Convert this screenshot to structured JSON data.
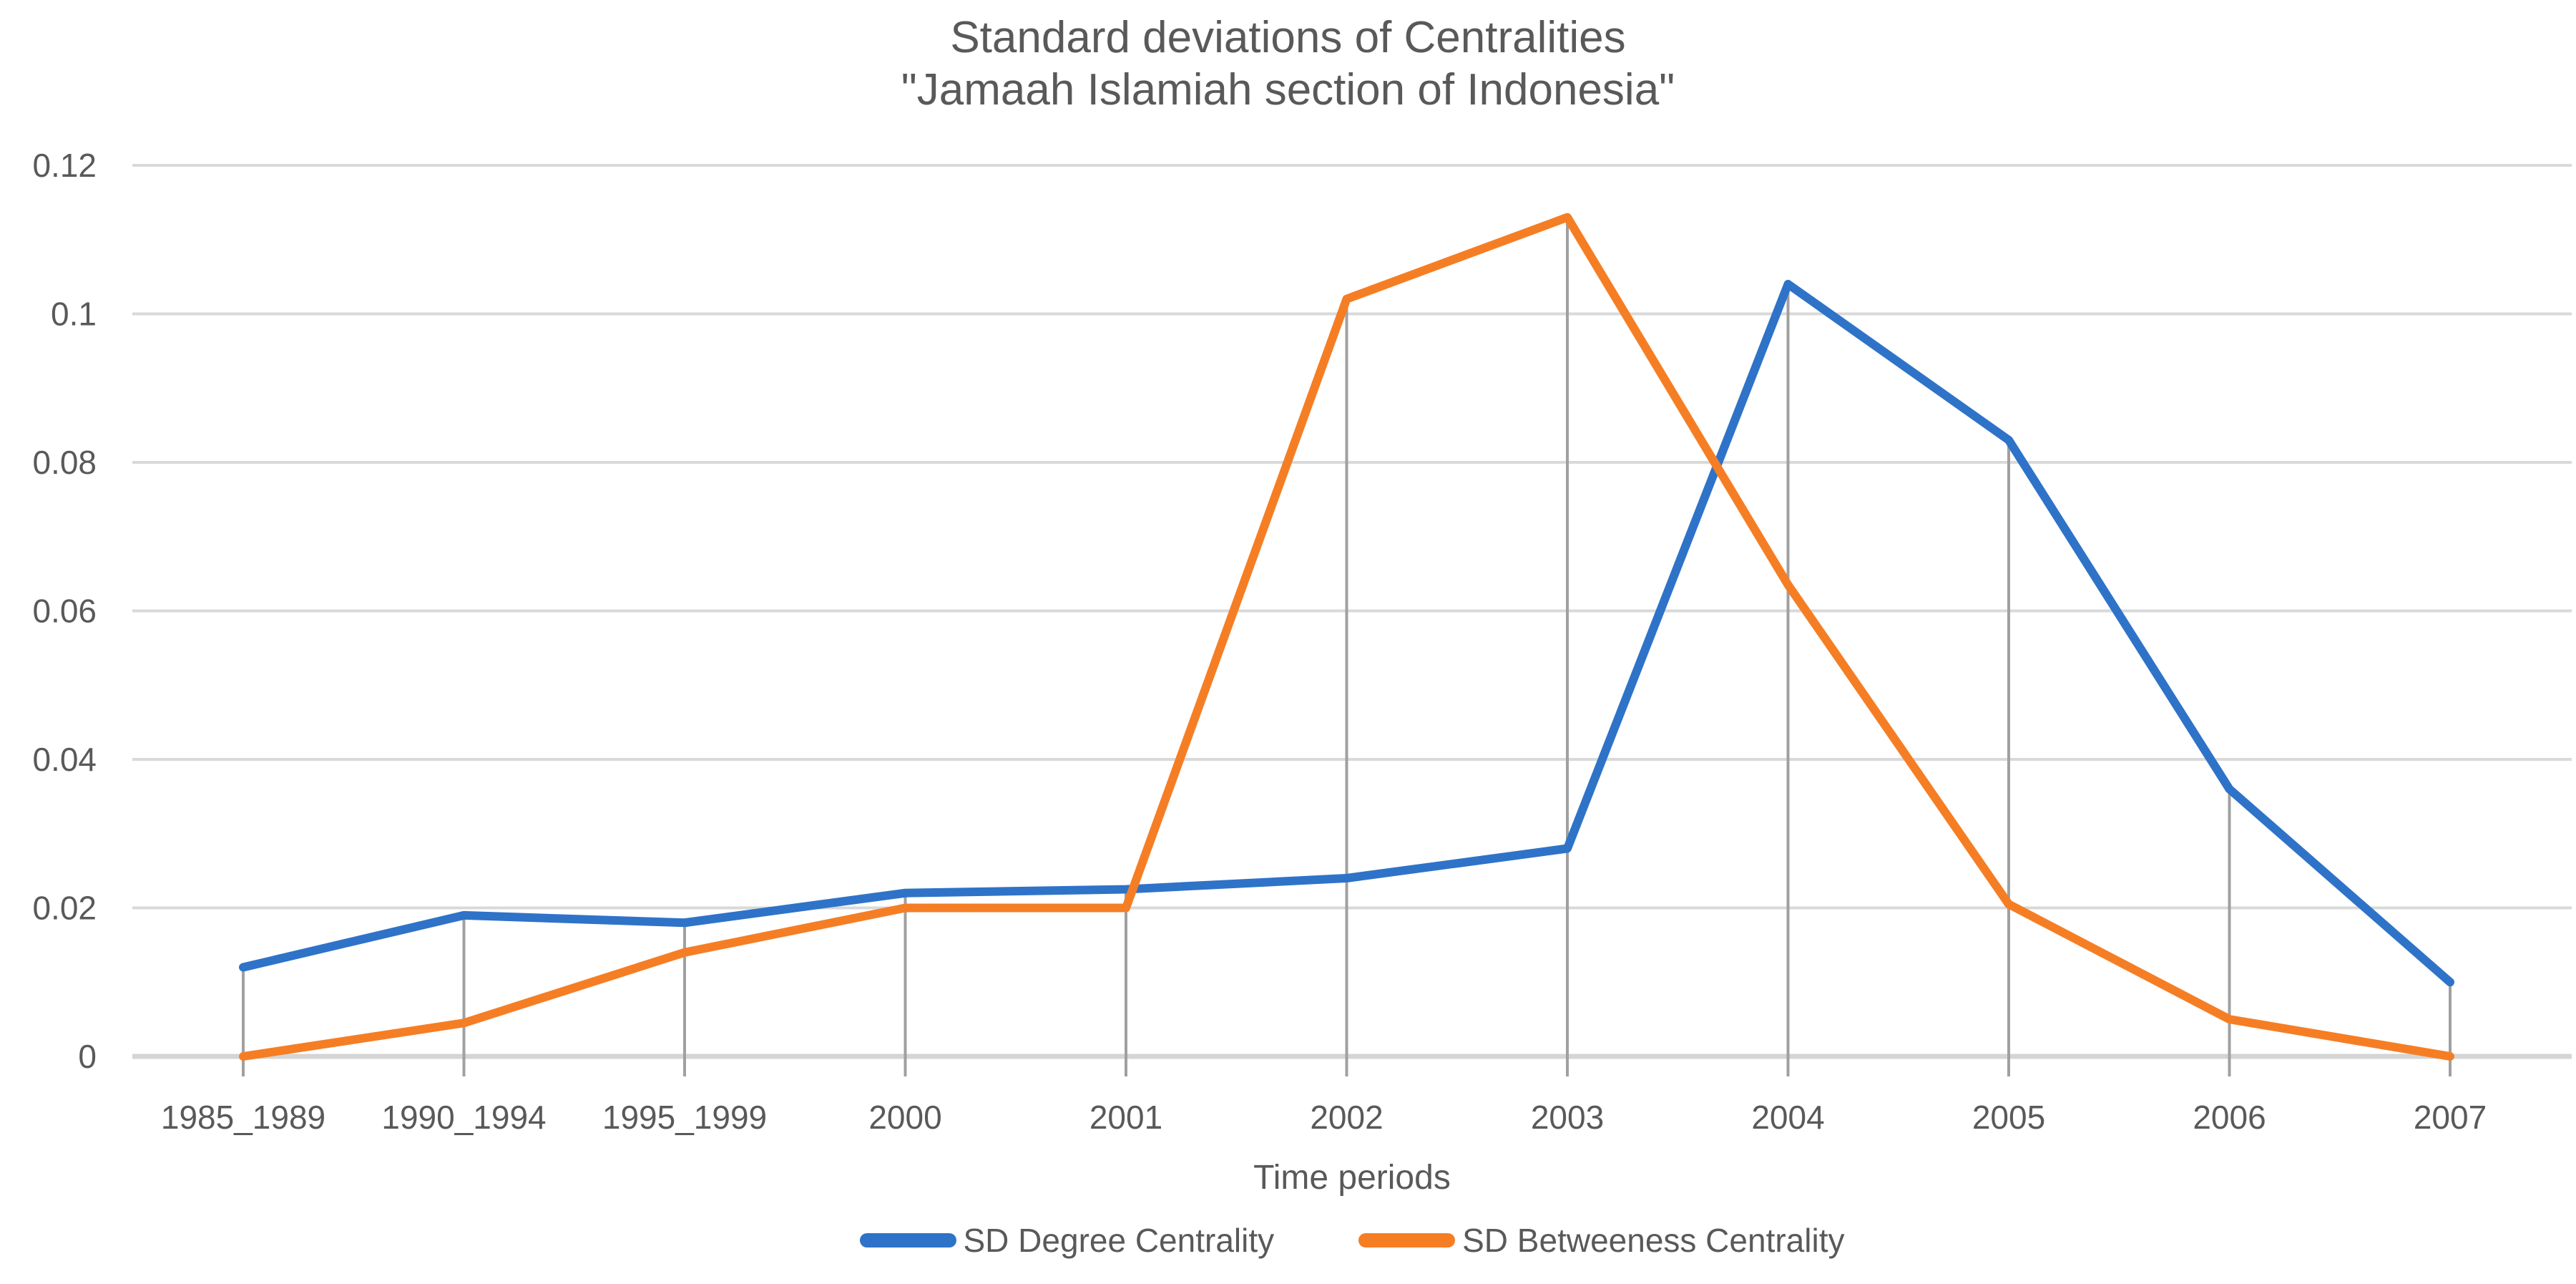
{
  "chart_data": {
    "type": "line",
    "title_line1": "Standard deviations of Centralities",
    "title_line2": "\"Jamaah Islamiah section of Indonesia\"",
    "xlabel": "Time periods",
    "categories": [
      "1985_1989",
      "1990_1994",
      "1995_1999",
      "2000",
      "2001",
      "2002",
      "2003",
      "2004",
      "2005",
      "2006",
      "2007"
    ],
    "series": [
      {
        "name": "SD Degree Centrality",
        "color": "#2E73C8",
        "values": [
          0.012,
          0.019,
          0.018,
          0.022,
          0.0225,
          0.024,
          0.028,
          0.104,
          0.083,
          0.036,
          0.01
        ]
      },
      {
        "name": "SD Betweeness Centrality",
        "color": "#F57E25",
        "values": [
          0.0,
          0.0045,
          0.014,
          0.02,
          0.02,
          0.102,
          0.113,
          0.0635,
          0.0205,
          0.005,
          0.0
        ]
      }
    ],
    "y_ticks": [
      0,
      0.02,
      0.04,
      0.06,
      0.08,
      0.1,
      0.12
    ],
    "y_tick_labels": [
      "0",
      "0.02",
      "0.04",
      "0.06",
      "0.08",
      "0.1",
      "0.12"
    ],
    "ylim": [
      0,
      0.12
    ],
    "grid": "horizontal-gridlines-with-category-high-low-lines",
    "legend_position": "bottom",
    "colors": {
      "title_text": "#595959",
      "axis_text": "#595959",
      "gridline": "#D9D9D9",
      "axis_line": "#D5D5D5",
      "high_low_line": "#A0A0A0",
      "background": "#FFFFFF"
    }
  }
}
